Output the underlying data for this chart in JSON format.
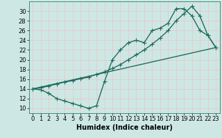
{
  "xlabel": "Humidex (Indice chaleur)",
  "bg_color": "#cde8e4",
  "grid_color": "#e8c8c8",
  "line_color": "#1e6b5e",
  "xlim": [
    -0.5,
    23.5
  ],
  "ylim": [
    9.0,
    32.0
  ],
  "yticks": [
    10,
    12,
    14,
    16,
    18,
    20,
    22,
    24,
    26,
    28,
    30
  ],
  "xticks": [
    0,
    1,
    2,
    3,
    4,
    5,
    6,
    7,
    8,
    9,
    10,
    11,
    12,
    13,
    14,
    15,
    16,
    17,
    18,
    19,
    20,
    21,
    22,
    23
  ],
  "line1_x": [
    0,
    1,
    2,
    3,
    4,
    5,
    6,
    7,
    8,
    9,
    10,
    11,
    12,
    13,
    14,
    15,
    16,
    17,
    18,
    19,
    20,
    21,
    22,
    23
  ],
  "line1_y": [
    14.0,
    13.8,
    13.1,
    12.0,
    11.5,
    11.0,
    10.5,
    10.0,
    10.5,
    15.5,
    20.0,
    22.0,
    23.5,
    24.0,
    23.5,
    26.0,
    26.5,
    27.5,
    30.5,
    30.5,
    29.0,
    26.0,
    25.0,
    22.5
  ],
  "line2_x": [
    0,
    23
  ],
  "line2_y": [
    14.0,
    22.5
  ],
  "line3_x": [
    0,
    1,
    2,
    3,
    4,
    5,
    6,
    7,
    8,
    9,
    10,
    11,
    12,
    13,
    14,
    15,
    16,
    17,
    18,
    19,
    20,
    21,
    22,
    23
  ],
  "line3_y": [
    14.0,
    14.2,
    14.6,
    15.0,
    15.4,
    15.7,
    16.1,
    16.4,
    17.0,
    17.5,
    18.2,
    19.0,
    20.0,
    21.0,
    22.0,
    23.2,
    24.5,
    26.0,
    28.0,
    29.5,
    31.0,
    29.0,
    25.0,
    22.5
  ],
  "marker_size": 2.5,
  "line_width": 1.0,
  "font_size_label": 7,
  "font_size_tick": 6
}
